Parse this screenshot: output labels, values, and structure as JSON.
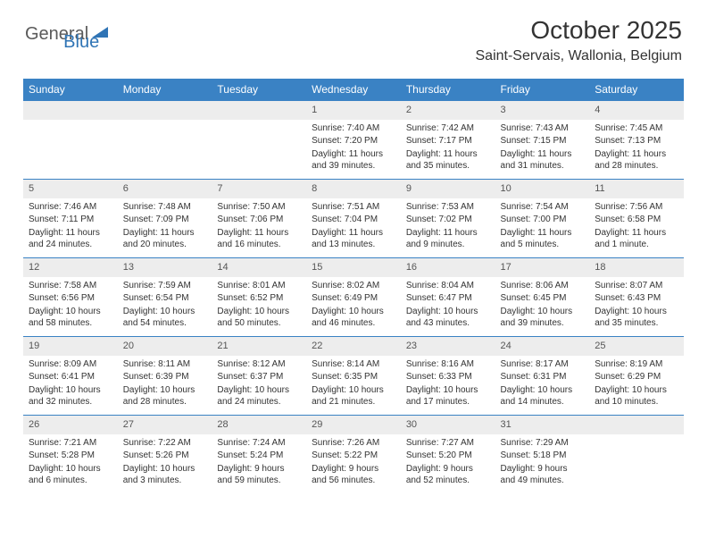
{
  "logo": {
    "word1": "General",
    "word2": "Blue",
    "triangle_color": "#2f74b5"
  },
  "title": "October 2025",
  "location": "Saint-Servais, Wallonia, Belgium",
  "colors": {
    "header_bg": "#3a82c4",
    "header_fg": "#ffffff",
    "daybar_bg": "#ededed",
    "rule": "#3a82c4",
    "text": "#333333"
  },
  "day_headers": [
    "Sunday",
    "Monday",
    "Tuesday",
    "Wednesday",
    "Thursday",
    "Friday",
    "Saturday"
  ],
  "weeks": [
    [
      {
        "blank": true
      },
      {
        "blank": true
      },
      {
        "blank": true
      },
      {
        "n": "1",
        "sunrise": "7:40 AM",
        "sunset": "7:20 PM",
        "daylight": "11 hours and 39 minutes."
      },
      {
        "n": "2",
        "sunrise": "7:42 AM",
        "sunset": "7:17 PM",
        "daylight": "11 hours and 35 minutes."
      },
      {
        "n": "3",
        "sunrise": "7:43 AM",
        "sunset": "7:15 PM",
        "daylight": "11 hours and 31 minutes."
      },
      {
        "n": "4",
        "sunrise": "7:45 AM",
        "sunset": "7:13 PM",
        "daylight": "11 hours and 28 minutes."
      }
    ],
    [
      {
        "n": "5",
        "sunrise": "7:46 AM",
        "sunset": "7:11 PM",
        "daylight": "11 hours and 24 minutes."
      },
      {
        "n": "6",
        "sunrise": "7:48 AM",
        "sunset": "7:09 PM",
        "daylight": "11 hours and 20 minutes."
      },
      {
        "n": "7",
        "sunrise": "7:50 AM",
        "sunset": "7:06 PM",
        "daylight": "11 hours and 16 minutes."
      },
      {
        "n": "8",
        "sunrise": "7:51 AM",
        "sunset": "7:04 PM",
        "daylight": "11 hours and 13 minutes."
      },
      {
        "n": "9",
        "sunrise": "7:53 AM",
        "sunset": "7:02 PM",
        "daylight": "11 hours and 9 minutes."
      },
      {
        "n": "10",
        "sunrise": "7:54 AM",
        "sunset": "7:00 PM",
        "daylight": "11 hours and 5 minutes."
      },
      {
        "n": "11",
        "sunrise": "7:56 AM",
        "sunset": "6:58 PM",
        "daylight": "11 hours and 1 minute."
      }
    ],
    [
      {
        "n": "12",
        "sunrise": "7:58 AM",
        "sunset": "6:56 PM",
        "daylight": "10 hours and 58 minutes."
      },
      {
        "n": "13",
        "sunrise": "7:59 AM",
        "sunset": "6:54 PM",
        "daylight": "10 hours and 54 minutes."
      },
      {
        "n": "14",
        "sunrise": "8:01 AM",
        "sunset": "6:52 PM",
        "daylight": "10 hours and 50 minutes."
      },
      {
        "n": "15",
        "sunrise": "8:02 AM",
        "sunset": "6:49 PM",
        "daylight": "10 hours and 46 minutes."
      },
      {
        "n": "16",
        "sunrise": "8:04 AM",
        "sunset": "6:47 PM",
        "daylight": "10 hours and 43 minutes."
      },
      {
        "n": "17",
        "sunrise": "8:06 AM",
        "sunset": "6:45 PM",
        "daylight": "10 hours and 39 minutes."
      },
      {
        "n": "18",
        "sunrise": "8:07 AM",
        "sunset": "6:43 PM",
        "daylight": "10 hours and 35 minutes."
      }
    ],
    [
      {
        "n": "19",
        "sunrise": "8:09 AM",
        "sunset": "6:41 PM",
        "daylight": "10 hours and 32 minutes."
      },
      {
        "n": "20",
        "sunrise": "8:11 AM",
        "sunset": "6:39 PM",
        "daylight": "10 hours and 28 minutes."
      },
      {
        "n": "21",
        "sunrise": "8:12 AM",
        "sunset": "6:37 PM",
        "daylight": "10 hours and 24 minutes."
      },
      {
        "n": "22",
        "sunrise": "8:14 AM",
        "sunset": "6:35 PM",
        "daylight": "10 hours and 21 minutes."
      },
      {
        "n": "23",
        "sunrise": "8:16 AM",
        "sunset": "6:33 PM",
        "daylight": "10 hours and 17 minutes."
      },
      {
        "n": "24",
        "sunrise": "8:17 AM",
        "sunset": "6:31 PM",
        "daylight": "10 hours and 14 minutes."
      },
      {
        "n": "25",
        "sunrise": "8:19 AM",
        "sunset": "6:29 PM",
        "daylight": "10 hours and 10 minutes."
      }
    ],
    [
      {
        "n": "26",
        "sunrise": "7:21 AM",
        "sunset": "5:28 PM",
        "daylight": "10 hours and 6 minutes."
      },
      {
        "n": "27",
        "sunrise": "7:22 AM",
        "sunset": "5:26 PM",
        "daylight": "10 hours and 3 minutes."
      },
      {
        "n": "28",
        "sunrise": "7:24 AM",
        "sunset": "5:24 PM",
        "daylight": "9 hours and 59 minutes."
      },
      {
        "n": "29",
        "sunrise": "7:26 AM",
        "sunset": "5:22 PM",
        "daylight": "9 hours and 56 minutes."
      },
      {
        "n": "30",
        "sunrise": "7:27 AM",
        "sunset": "5:20 PM",
        "daylight": "9 hours and 52 minutes."
      },
      {
        "n": "31",
        "sunrise": "7:29 AM",
        "sunset": "5:18 PM",
        "daylight": "9 hours and 49 minutes."
      },
      {
        "blank": true
      }
    ]
  ],
  "labels": {
    "sunrise": "Sunrise:",
    "sunset": "Sunset:",
    "daylight": "Daylight:"
  }
}
